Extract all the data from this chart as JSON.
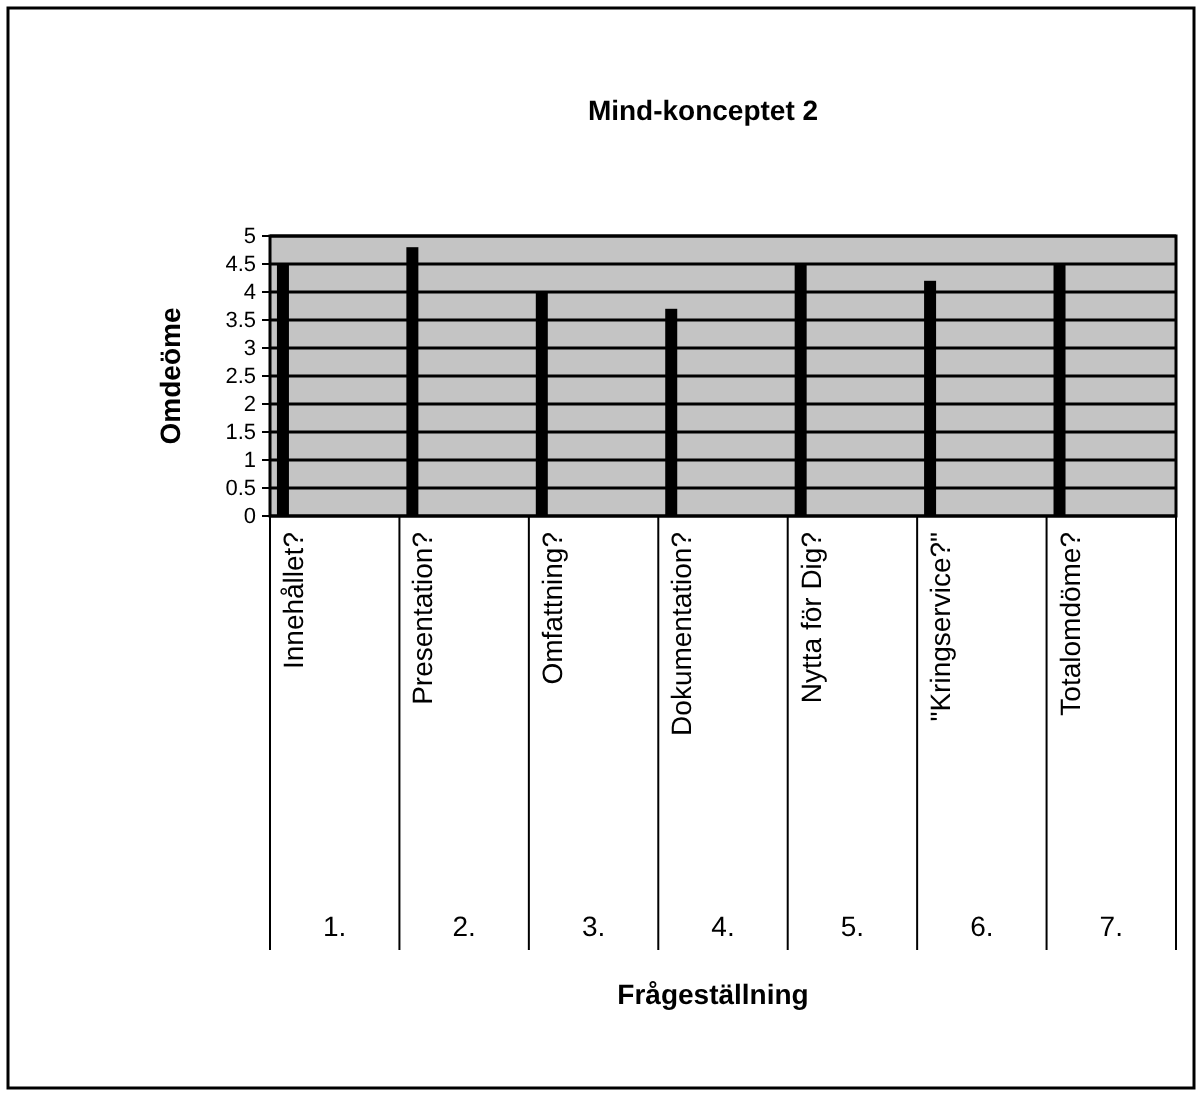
{
  "chart_data": {
    "type": "bar",
    "title": "Mind-konceptet 2",
    "ylabel": "Omdeöme",
    "categories": [
      "Innehållet?",
      "Presentation?",
      "Omfattning?",
      "Dokumentation?",
      "Nytta för Dig?",
      "\"Kringservice?\"",
      "Totalomdöme?"
    ],
    "values": [
      4.5,
      4.8,
      4.0,
      3.7,
      4.5,
      4.2,
      4.5
    ],
    "color": "#000000",
    "ylim": [
      0,
      5
    ],
    "yticks": [
      0,
      0.5,
      1,
      1.5,
      2,
      2.5,
      3,
      3.5,
      4,
      4.5,
      5
    ],
    "grid": "y",
    "annotations": [
      "1.",
      "2.",
      "3.",
      "4.",
      "5.",
      "6.",
      "7.",
      "Frågeställning"
    ]
  }
}
